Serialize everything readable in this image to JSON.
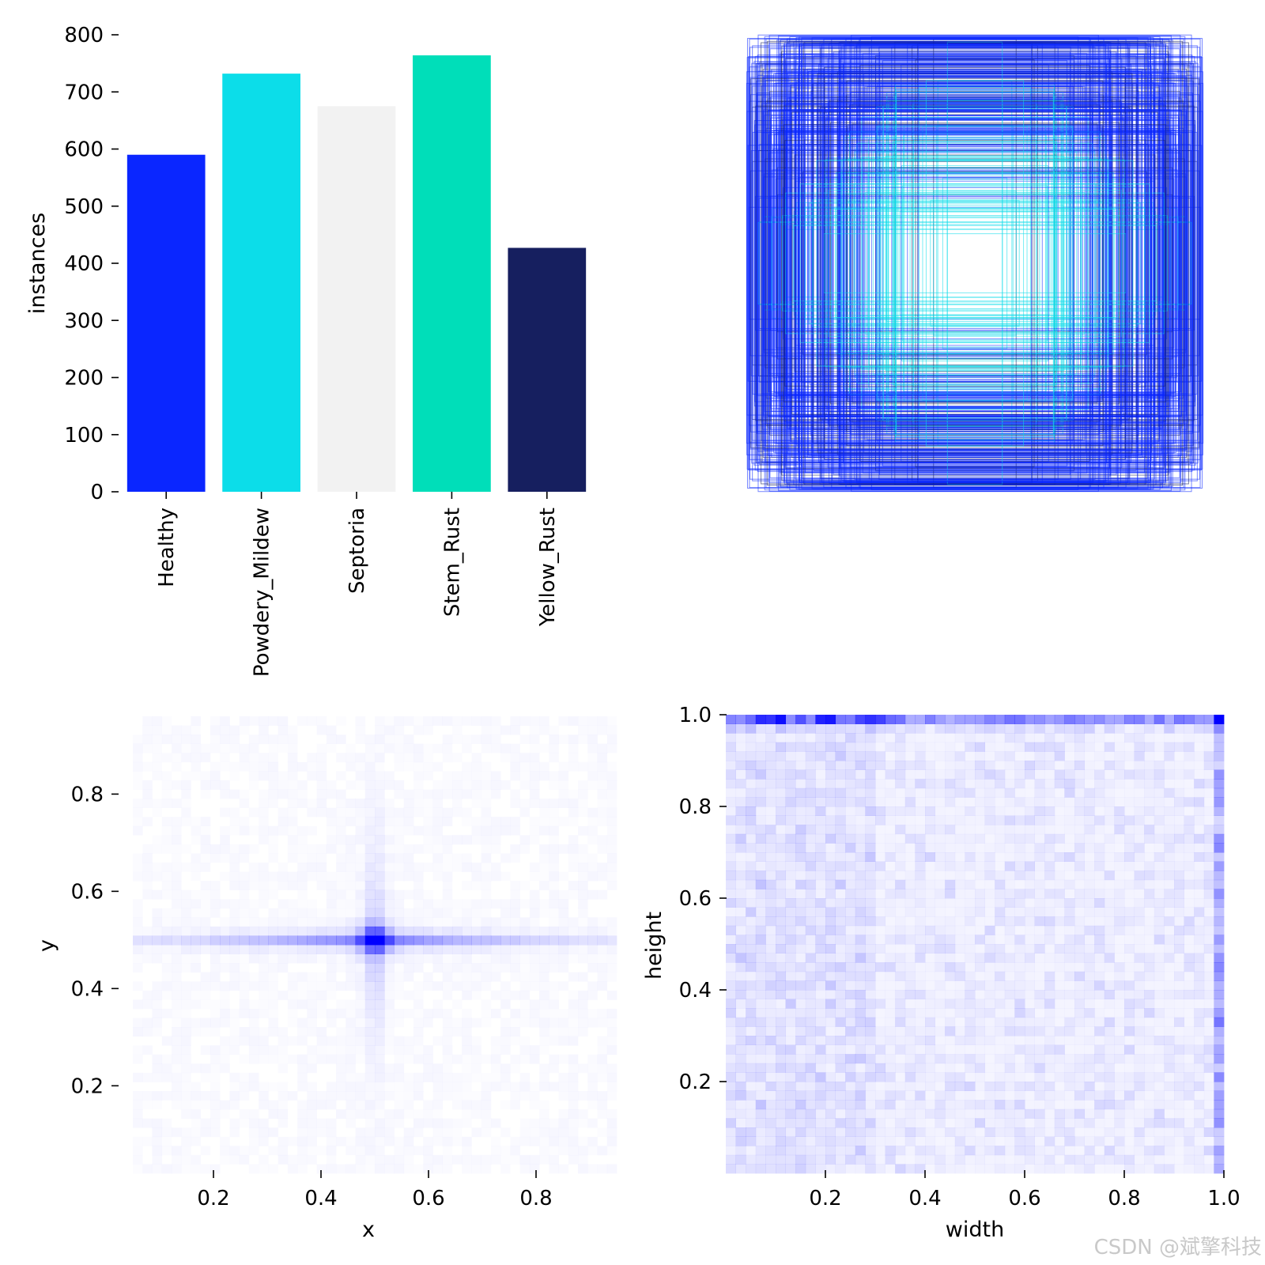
{
  "chart_data": [
    {
      "type": "bar",
      "title": "",
      "xlabel": "",
      "ylabel": "instances",
      "categories": [
        "Healthy",
        "Powdery_Mildew",
        "Septoria",
        "Stem_Rust",
        "Yellow_Rust"
      ],
      "values": [
        590,
        732,
        675,
        764,
        427
      ],
      "colors": [
        "#0a26ff",
        "#0cdde9",
        "#f2f2f2",
        "#00deb9",
        "#161f5f"
      ],
      "ylim": [
        0,
        800
      ],
      "yticks": [
        "0",
        "100",
        "200",
        "300",
        "400",
        "500",
        "600",
        "700",
        "800"
      ]
    },
    {
      "type": "scatter",
      "description_label": "",
      "title": "",
      "series_colors": [
        "#0a26ff",
        "#0cdde9",
        "#161f5f"
      ]
    },
    {
      "type": "heatmap",
      "title": "",
      "xlabel": "x",
      "ylabel": "y",
      "xlim": [
        0.05,
        0.95
      ],
      "ylim": [
        0.02,
        0.96
      ],
      "xticks": [
        "0.2",
        "0.4",
        "0.6",
        "0.8"
      ],
      "yticks": [
        "0.2",
        "0.4",
        "0.6",
        "0.8"
      ],
      "peak": {
        "x": 0.5,
        "y": 0.5
      },
      "color": "#0000ff"
    },
    {
      "type": "heatmap",
      "title": "",
      "xlabel": "width",
      "ylabel": "height",
      "xlim": [
        0.0,
        1.0
      ],
      "ylim": [
        0.0,
        1.0
      ],
      "xticks": [
        "0.2",
        "0.4",
        "0.6",
        "0.8",
        "1.0"
      ],
      "yticks": [
        "0.2",
        "0.4",
        "0.6",
        "0.8",
        "1.0"
      ],
      "color": "#0000ff"
    }
  ],
  "watermark": "CSDN @斌擎科技"
}
